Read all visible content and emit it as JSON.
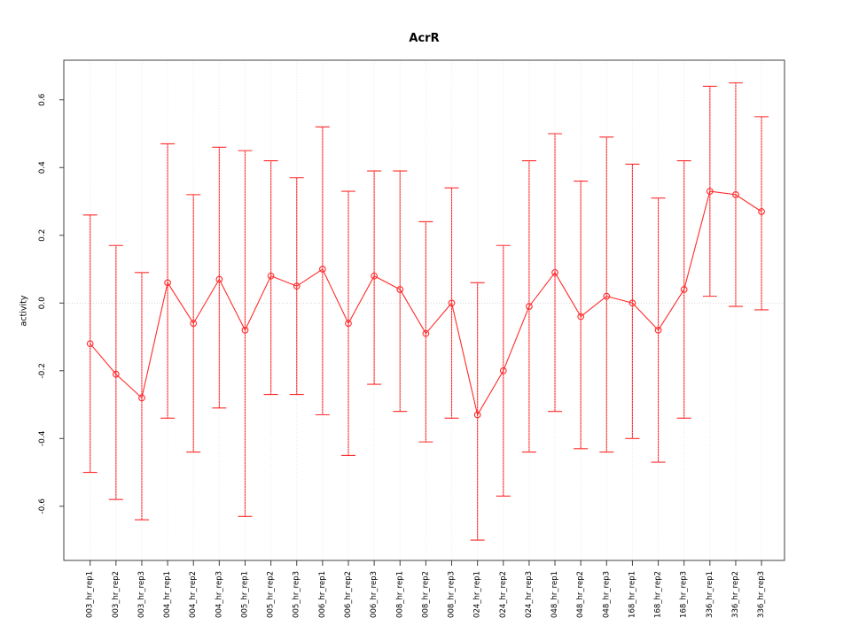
{
  "page": {
    "background": "#ffffff"
  },
  "chart_data": {
    "type": "line",
    "title": "AcrR",
    "xlabel": "",
    "ylabel": "activity",
    "legend": "none",
    "point_style": "open-circle",
    "error_bars": true,
    "series_color": "#ff2b2b",
    "grid": {
      "vertical_dotted_per_category": true,
      "horizontal_zero_dotted": true,
      "color": "#d9d9d9"
    },
    "ylim": [
      -0.76,
      0.717
    ],
    "yticks": [
      {
        "value": -0.6,
        "label": "-0.6"
      },
      {
        "value": -0.4,
        "label": "-0.4"
      },
      {
        "value": -0.2,
        "label": "-0.2"
      },
      {
        "value": 0.0,
        "label": "0.0"
      },
      {
        "value": 0.2,
        "label": "0.2"
      },
      {
        "value": 0.4,
        "label": "0.4"
      },
      {
        "value": 0.6,
        "label": "0.6"
      }
    ],
    "categories": [
      "003_hr_rep1",
      "003_hr_rep2",
      "003_hr_rep3",
      "004_hr_rep1",
      "004_hr_rep2",
      "004_hr_rep3",
      "005_hr_rep1",
      "005_hr_rep2",
      "005_hr_rep3",
      "006_hr_rep1",
      "006_hr_rep2",
      "006_hr_rep3",
      "008_hr_rep1",
      "008_hr_rep2",
      "008_hr_rep3",
      "024_hr_rep1",
      "024_hr_rep2",
      "024_hr_rep3",
      "048_hr_rep1",
      "048_hr_rep2",
      "048_hr_rep3",
      "168_hr_rep1",
      "168_hr_rep2",
      "168_hr_rep3",
      "336_hr_rep1",
      "336_hr_rep2",
      "336_hr_rep3"
    ],
    "series": [
      {
        "name": "activity",
        "values": [
          -0.12,
          -0.21,
          -0.28,
          0.06,
          -0.06,
          0.07,
          -0.08,
          0.08,
          0.05,
          0.1,
          -0.06,
          0.08,
          0.04,
          -0.09,
          0.0,
          -0.33,
          -0.2,
          -0.01,
          0.09,
          -0.04,
          0.02,
          0.0,
          -0.08,
          0.04,
          0.33,
          0.32,
          0.27
        ],
        "error_upper": [
          0.26,
          0.17,
          0.09,
          0.47,
          0.32,
          0.46,
          0.45,
          0.42,
          0.37,
          0.52,
          0.33,
          0.39,
          0.39,
          0.24,
          0.34,
          0.06,
          0.17,
          0.42,
          0.5,
          0.36,
          0.49,
          0.41,
          0.31,
          0.42,
          0.64,
          0.65,
          0.55
        ],
        "error_lower": [
          -0.5,
          -0.58,
          -0.64,
          -0.34,
          -0.44,
          -0.31,
          -0.63,
          -0.27,
          -0.27,
          -0.33,
          -0.45,
          -0.24,
          -0.32,
          -0.41,
          -0.34,
          -0.7,
          -0.57,
          -0.44,
          -0.32,
          -0.43,
          -0.44,
          -0.4,
          -0.47,
          -0.34,
          0.02,
          -0.01,
          -0.02
        ]
      }
    ]
  }
}
